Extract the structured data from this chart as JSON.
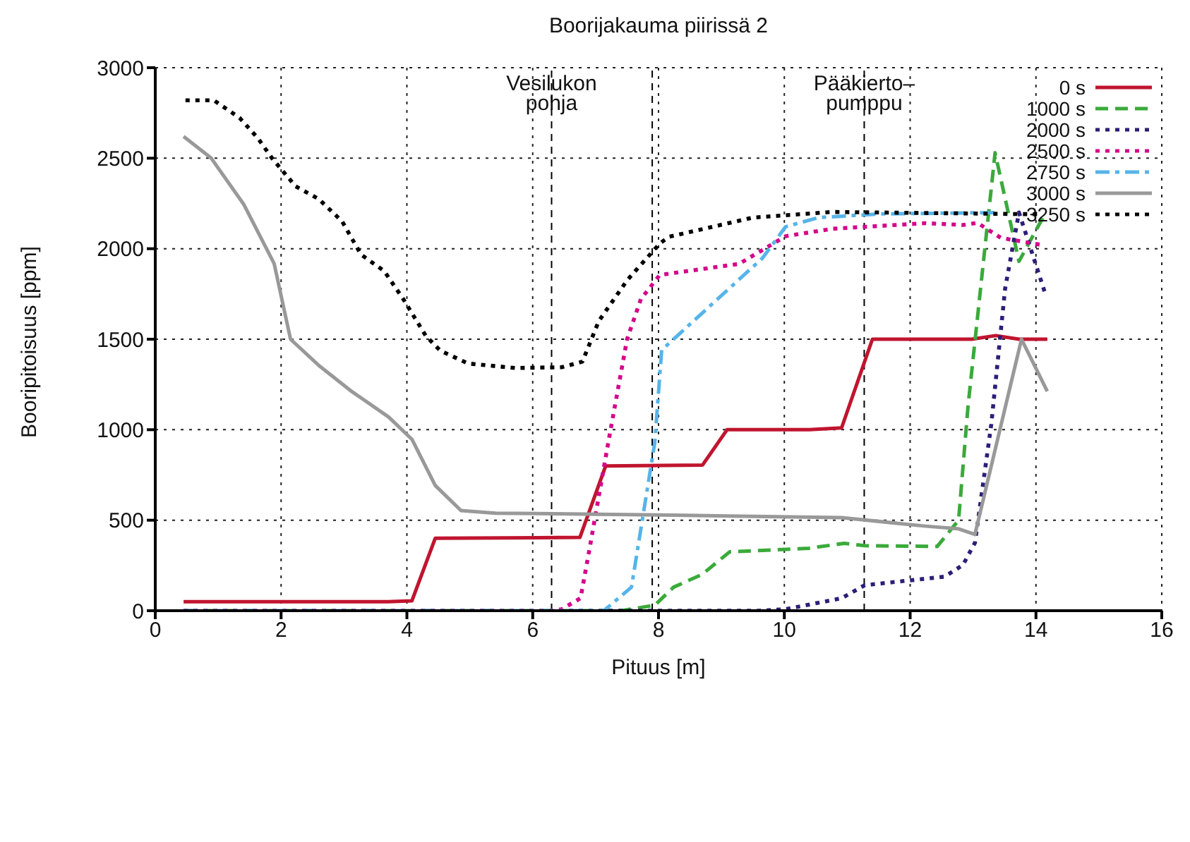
{
  "chart_data": {
    "type": "line",
    "title": "Boorijakauma piirissä 2",
    "xlabel": "Pituus [m]",
    "ylabel": "Booripitoisuus [ppm]",
    "xlim": [
      0,
      16
    ],
    "xticks": [
      0,
      2,
      4,
      6,
      8,
      10,
      12,
      14,
      16
    ],
    "ylim": [
      0,
      3000
    ],
    "yticks": [
      0,
      500,
      1000,
      1500,
      2000,
      2500,
      3000
    ],
    "grid": true,
    "legend": "top right",
    "marker": "none",
    "ref_lines": [
      {
        "axis": "x",
        "value": 6.3,
        "label": "Vesilukon\npohja",
        "color": "#000000",
        "line_style": "dashed"
      },
      {
        "axis": "x",
        "value": 7.9,
        "label": null,
        "color": "#000000",
        "line_style": "dashed"
      },
      {
        "axis": "x",
        "value": 11.27,
        "label": "Pääkierto–\npumppu",
        "color": "#000000",
        "line_style": "dashed"
      }
    ],
    "series": [
      {
        "name": "0 s",
        "color": "#c0152f",
        "line_style": "solid",
        "x": [
          0.45,
          3.7,
          4.08,
          4.45,
          6.75,
          7.16,
          8.7,
          9.09,
          10.4,
          10.91,
          11.4,
          12.98,
          13.36,
          13.73,
          14.18
        ],
        "values": [
          50,
          50,
          55,
          400,
          405,
          800,
          805,
          1000,
          1000,
          1010,
          1500,
          1500,
          1520,
          1500,
          1500
        ]
      },
      {
        "name": "1000 s",
        "color": "#3aaa3a",
        "line_style": "dashed",
        "x": [
          0.45,
          7.4,
          7.94,
          8.24,
          8.69,
          9.13,
          10.39,
          10.95,
          11.28,
          12.43,
          12.77,
          12.92,
          13.35,
          13.73,
          14.14
        ],
        "values": [
          0,
          0,
          30,
          130,
          200,
          325,
          345,
          372,
          359,
          355,
          500,
          1130,
          2530,
          1930,
          2190
        ]
      },
      {
        "name": "2000 s",
        "color": "#2d1e78",
        "line_style": "dotted",
        "x": [
          0.45,
          9.6,
          10.02,
          10.91,
          11.28,
          12.55,
          12.84,
          13.03,
          13.29,
          13.51,
          13.73,
          14.14
        ],
        "values": [
          0,
          0,
          8,
          69,
          141,
          188,
          253,
          375,
          1030,
          1780,
          2200,
          1760
        ]
      },
      {
        "name": "2500 s",
        "color": "#d4068a",
        "line_style": "dotted",
        "x": [
          0.45,
          6.3,
          6.46,
          6.76,
          6.9,
          7.2,
          7.5,
          7.72,
          8.02,
          9.28,
          10.02,
          10.76,
          12.25,
          12.84,
          13.07,
          13.44,
          14.1
        ],
        "values": [
          0,
          0,
          8,
          69,
          335,
          927,
          1500,
          1722,
          1855,
          1916,
          2069,
          2110,
          2141,
          2131,
          2143,
          2060,
          2020
        ]
      },
      {
        "name": "2750 s",
        "color": "#56b4e9",
        "line_style": "dashdot",
        "x": [
          0.45,
          7.13,
          7.57,
          7.94,
          8.05,
          9.65,
          10.02,
          10.54,
          11.51,
          13.4
        ],
        "values": [
          0,
          0,
          130,
          927,
          1440,
          1947,
          2121,
          2172,
          2192,
          2200
        ]
      },
      {
        "name": "3000 s",
        "color": "#999999",
        "line_style": "solid",
        "x": [
          0.45,
          0.89,
          1.41,
          1.89,
          2.15,
          2.6,
          3.12,
          3.71,
          4.08,
          4.45,
          4.86,
          5.41,
          8.24,
          10.91,
          12.25,
          12.76,
          13.03,
          13.77,
          14.18
        ],
        "values": [
          2620,
          2500,
          2243,
          1917,
          1500,
          1355,
          1212,
          1070,
          947,
          692,
          553,
          539,
          528,
          514,
          467,
          453,
          421,
          1500,
          1212
        ]
      },
      {
        "name": "3250 s",
        "color": "#000000",
        "line_style": "dotted",
        "x": [
          0.48,
          0.93,
          1.34,
          1.63,
          1.86,
          2.23,
          2.6,
          2.97,
          3.27,
          3.64,
          3.94,
          4.3,
          4.53,
          4.97,
          5.72,
          6.46,
          6.79,
          7.05,
          7.5,
          8.02,
          8.17,
          9.5,
          10.76,
          14.1
        ],
        "values": [
          2820,
          2820,
          2723,
          2611,
          2498,
          2345,
          2274,
          2151,
          1968,
          1876,
          1723,
          1519,
          1437,
          1366,
          1341,
          1345,
          1376,
          1600,
          1825,
          2029,
          2066,
          2172,
          2203,
          2190
        ]
      }
    ]
  }
}
